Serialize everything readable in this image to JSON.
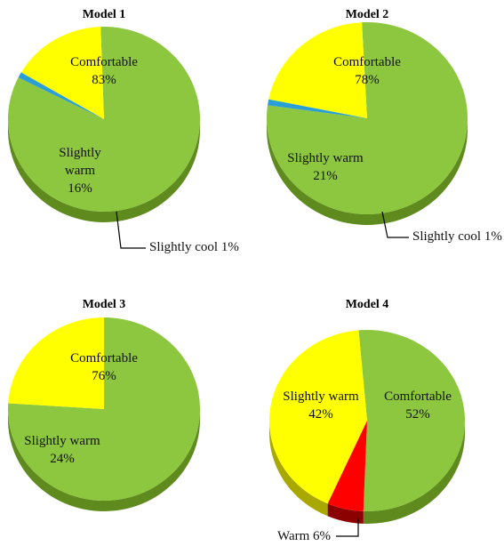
{
  "chart_data": [
    {
      "type": "pie",
      "title": "Model 1",
      "slices": [
        {
          "label": "Comfortable",
          "value": 83,
          "value_text": "83%",
          "color": "#8DC63F",
          "side_color": "#5E8A1E"
        },
        {
          "label": "Slightly cool",
          "value": 1,
          "value_text": "1%",
          "color": "#2A9FD6",
          "side_color": "#1B6F98"
        },
        {
          "label": "Slightly warm",
          "value": 16,
          "value_text": "16%",
          "color": "#FFFF00",
          "side_color": "#A8A800"
        }
      ]
    },
    {
      "type": "pie",
      "title": "Model 2",
      "slices": [
        {
          "label": "Comfortable",
          "value": 78,
          "value_text": "78%",
          "color": "#8DC63F",
          "side_color": "#5E8A1E"
        },
        {
          "label": "Slightly cool",
          "value": 1,
          "value_text": "1%",
          "color": "#2A9FD6",
          "side_color": "#1B6F98"
        },
        {
          "label": "Slightly warm",
          "value": 21,
          "value_text": "21%",
          "color": "#FFFF00",
          "side_color": "#A8A800"
        }
      ]
    },
    {
      "type": "pie",
      "title": "Model 3",
      "slices": [
        {
          "label": "Comfortable",
          "value": 76,
          "value_text": "76%",
          "color": "#8DC63F",
          "side_color": "#5E8A1E"
        },
        {
          "label": "Slightly warm",
          "value": 24,
          "value_text": "24%",
          "color": "#FFFF00",
          "side_color": "#A8A800"
        }
      ]
    },
    {
      "type": "pie",
      "title": "Model 4",
      "slices": [
        {
          "label": "Comfortable",
          "value": 52,
          "value_text": "52%",
          "color": "#8DC63F",
          "side_color": "#5E8A1E"
        },
        {
          "label": "Warm",
          "value": 6,
          "value_text": "6%",
          "color": "#FF0000",
          "side_color": "#8B0000"
        },
        {
          "label": "Slightly warm",
          "value": 42,
          "value_text": "42%",
          "color": "#FFFF00",
          "side_color": "#A8A800"
        }
      ]
    }
  ]
}
